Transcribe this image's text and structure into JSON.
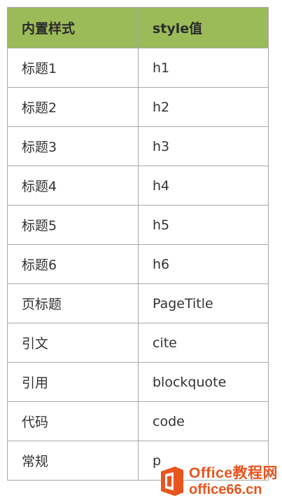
{
  "table": {
    "headers": [
      "内置样式",
      "style值"
    ],
    "rows": [
      {
        "name": "标题1",
        "value": "h1"
      },
      {
        "name": "标题2",
        "value": "h2"
      },
      {
        "name": "标题3",
        "value": "h3"
      },
      {
        "name": "标题4",
        "value": "h4"
      },
      {
        "name": "标题5",
        "value": "h5"
      },
      {
        "name": "标题6",
        "value": "h6"
      },
      {
        "name": "页标题",
        "value": "PageTitle"
      },
      {
        "name": "引文",
        "value": "cite"
      },
      {
        "name": "引用",
        "value": "blockquote"
      },
      {
        "name": "代码",
        "value": "code"
      },
      {
        "name": "常规",
        "value": "p"
      }
    ]
  },
  "watermark": {
    "line1": "Office教程网",
    "line2": "office66.cn",
    "logo_icon": "office-logo-icon",
    "accent_color": "#e8541e"
  },
  "colors": {
    "header_background": "#9bbb59",
    "border": "#a8a8a8"
  }
}
